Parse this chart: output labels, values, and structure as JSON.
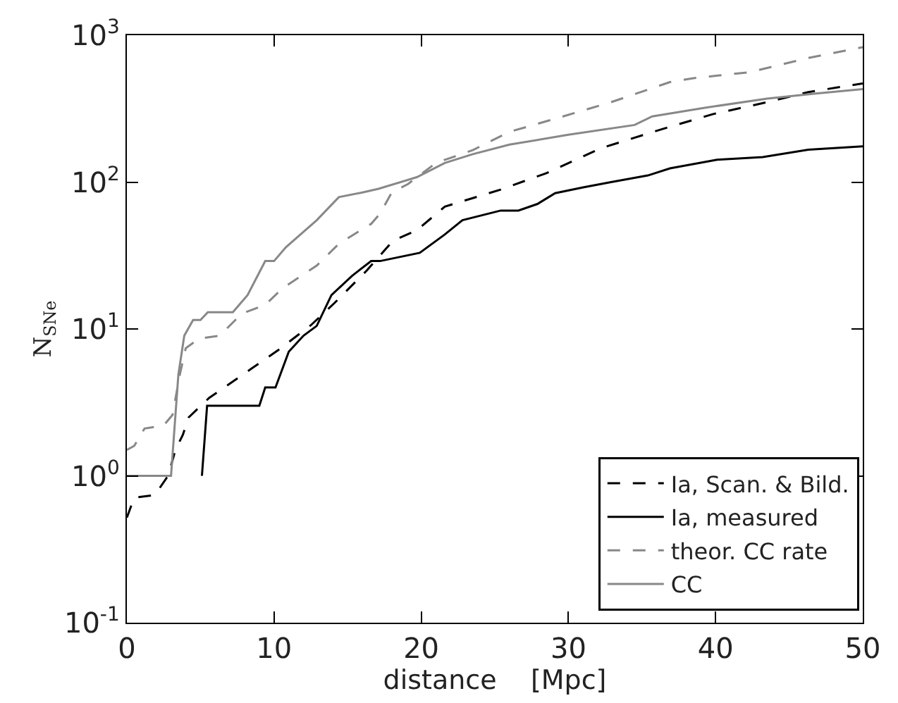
{
  "chart_data": {
    "type": "line",
    "xlabel": "distance    [Mpc]",
    "ylabel": "N$_{SNe}$",
    "log": "y",
    "legend": "bottom right",
    "marker": "none",
    "xlim": [
      0,
      50
    ],
    "xticks": [
      0,
      10,
      20,
      30,
      40,
      50
    ],
    "ylim": [
      0.1,
      1000
    ],
    "yticks": [
      {
        "value": 0.1,
        "label": "10$^{-1}$"
      },
      {
        "value": 1,
        "label": "10$^{0}$"
      },
      {
        "value": 10,
        "label": "10$^{1}$"
      },
      {
        "value": 100,
        "label": "10$^{2}$"
      },
      {
        "value": 1000,
        "label": "10$^{3}$"
      }
    ],
    "series": [
      {
        "name": "Ia, Scan. & Bild.",
        "color": "#000000",
        "line_style": "dashed",
        "x": [
          0,
          0.5,
          1.9,
          2.8,
          3.3,
          3.8,
          4.2,
          5.6,
          8.5,
          10.3,
          12.5,
          14.1,
          16.3,
          18.1,
          19.7,
          21.6,
          25.4,
          28.5,
          32.2,
          36.4,
          39.8,
          43.5,
          46.3,
          50
        ],
        "values": [
          0.52,
          0.71,
          0.74,
          1.0,
          1.5,
          1.9,
          2.5,
          3.4,
          5.4,
          7.2,
          10.6,
          15,
          25,
          40,
          47,
          68,
          89,
          115,
          170,
          230,
          290,
          350,
          410,
          470
        ]
      },
      {
        "name": "Ia, measured",
        "color": "#000000",
        "line_style": "solid",
        "x": [
          5.1,
          5.45,
          9.0,
          9.4,
          10.1,
          11.0,
          12.0,
          12.9,
          13.9,
          15.3,
          16.6,
          17.2,
          19.9,
          21.6,
          22.8,
          25.4,
          26.6,
          27.9,
          29.1,
          31.0,
          32.9,
          35.4,
          36.9,
          40.1,
          43.2,
          46.3,
          50
        ],
        "values": [
          1,
          3,
          3,
          4,
          4,
          7,
          9,
          10.5,
          17,
          23,
          29,
          29,
          33,
          44,
          55,
          64,
          64,
          71,
          84,
          92,
          100,
          111,
          124,
          142,
          148,
          166,
          175
        ]
      },
      {
        "name": "theor. CC rate",
        "color": "#888888",
        "line_style": "dashed",
        "x": [
          0,
          0.5,
          1.2,
          2.5,
          3.1,
          3.6,
          4.0,
          4.9,
          6.3,
          7.8,
          9.4,
          10.6,
          12.9,
          14.4,
          16.6,
          17.2,
          18.0,
          19.1,
          21.0,
          23.5,
          26.0,
          29.1,
          32.9,
          36.9,
          38.5,
          42.3,
          46.3,
          50
        ],
        "values": [
          1.5,
          1.6,
          2.1,
          2.2,
          2.6,
          4.9,
          7.4,
          8.6,
          9,
          12.7,
          14.6,
          19,
          27,
          38,
          52,
          61,
          85,
          97,
          135,
          165,
          220,
          270,
          350,
          480,
          510,
          560,
          700,
          830
        ]
      },
      {
        "name": "CC",
        "color": "#888888",
        "line_style": "solid",
        "x": [
          0,
          2.8,
          3.0,
          3.5,
          3.9,
          4.5,
          5.0,
          5.5,
          7.2,
          8.2,
          9.4,
          10.0,
          10.8,
          12.9,
          14.4,
          16.0,
          17.1,
          19.7,
          21.6,
          23.5,
          26.0,
          30.0,
          34.5,
          35.7,
          39.2,
          43.5,
          46.7,
          50
        ],
        "values": [
          1,
          1,
          1,
          4.9,
          9,
          11.5,
          11.5,
          13,
          13,
          17,
          29,
          29,
          36,
          55,
          79,
          85,
          90,
          108,
          135,
          155,
          180,
          210,
          245,
          280,
          320,
          370,
          400,
          430
        ]
      }
    ]
  }
}
